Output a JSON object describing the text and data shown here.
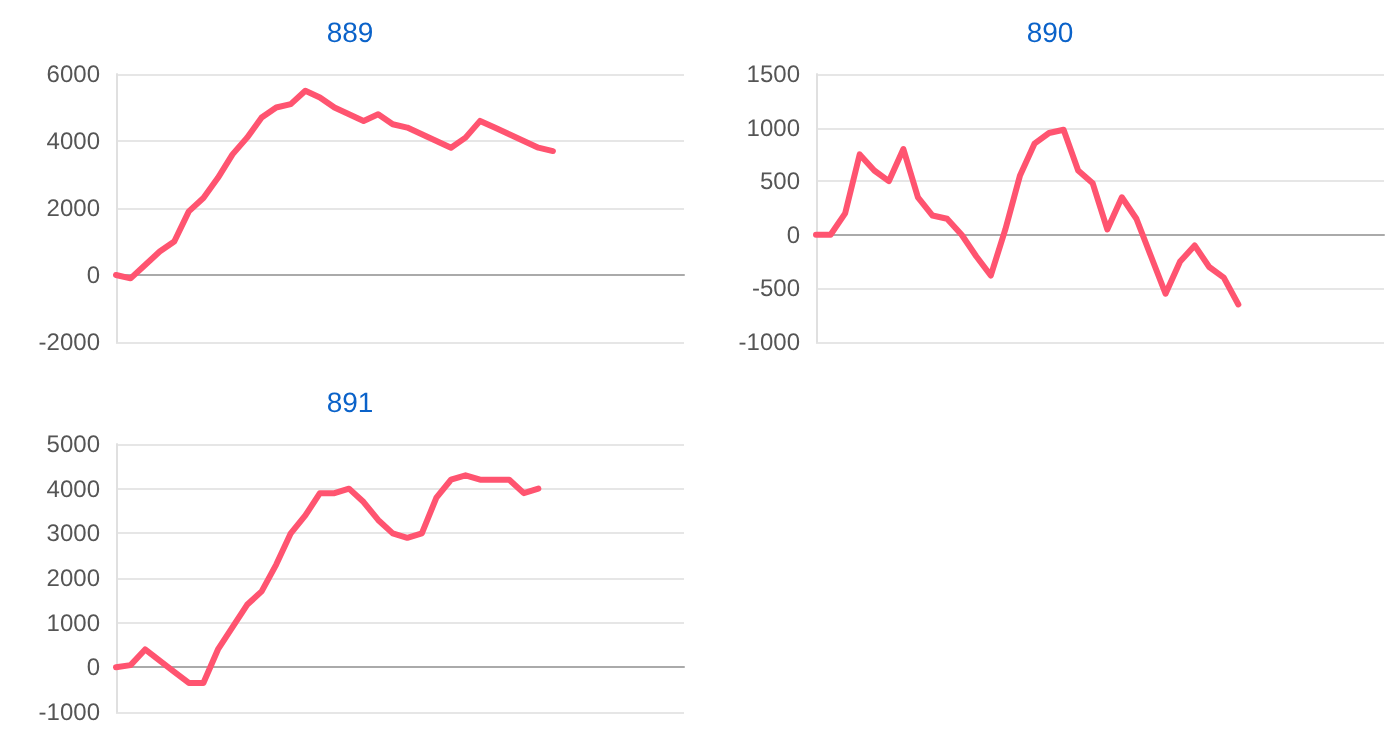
{
  "chart_data": [
    {
      "type": "line",
      "title": "889",
      "categories": [
        null,
        null,
        null,
        null,
        null,
        null,
        null,
        null,
        null,
        null,
        null,
        null,
        null,
        null,
        null,
        null,
        null,
        null,
        null,
        null,
        null,
        null,
        null,
        null,
        null,
        null,
        null,
        null,
        null,
        null,
        null,
        null,
        null,
        null,
        null,
        null,
        null,
        null,
        null,
        null
      ],
      "series": [
        {
          "color": "#ff5470",
          "values": [
            0,
            -100,
            300,
            700,
            1000,
            1900,
            2300,
            2900,
            3600,
            4100,
            4700,
            5000,
            5100,
            5500,
            5300,
            5000,
            4800,
            4600,
            4800,
            4500,
            4400,
            4200,
            4000,
            3800,
            4100,
            4600,
            4400,
            4200,
            4000,
            3800,
            3700,
            null,
            null,
            null,
            null,
            null,
            null,
            null,
            null,
            null
          ]
        }
      ],
      "ylim": [
        -2000,
        6000
      ],
      "yticks": [
        -2000,
        0,
        2000,
        4000,
        6000
      ],
      "grid": "y",
      "marker": "none",
      "line_style": "solid"
    },
    {
      "type": "line",
      "title": "890",
      "categories": [
        null,
        null,
        null,
        null,
        null,
        null,
        null,
        null,
        null,
        null,
        null,
        null,
        null,
        null,
        null,
        null,
        null,
        null,
        null,
        null,
        null,
        null,
        null,
        null,
        null,
        null,
        null,
        null,
        null,
        null,
        null,
        null,
        null,
        null,
        null,
        null,
        null,
        null,
        null,
        null
      ],
      "series": [
        {
          "color": "#ff5470",
          "values": [
            0,
            0,
            200,
            750,
            600,
            500,
            800,
            350,
            180,
            150,
            0,
            -200,
            -380,
            50,
            550,
            850,
            950,
            980,
            600,
            480,
            50,
            350,
            150,
            -200,
            -550,
            -250,
            -100,
            -300,
            -400,
            -650,
            null,
            null,
            null,
            null,
            null,
            null,
            null,
            null,
            null,
            null
          ]
        }
      ],
      "ylim": [
        -1000,
        1500
      ],
      "yticks": [
        -1000,
        -500,
        0,
        500,
        1000,
        1500
      ],
      "grid": "y",
      "marker": "none",
      "line_style": "solid"
    },
    {
      "type": "line",
      "title": "891",
      "categories": [
        null,
        null,
        null,
        null,
        null,
        null,
        null,
        null,
        null,
        null,
        null,
        null,
        null,
        null,
        null,
        null,
        null,
        null,
        null,
        null,
        null,
        null,
        null,
        null,
        null,
        null,
        null,
        null,
        null,
        null,
        null,
        null,
        null,
        null,
        null,
        null,
        null,
        null,
        null,
        null
      ],
      "series": [
        {
          "color": "#ff5470",
          "values": [
            0,
            50,
            400,
            150,
            -100,
            -350,
            -350,
            400,
            900,
            1400,
            1700,
            2300,
            3000,
            3400,
            3900,
            3900,
            4000,
            3700,
            3300,
            3000,
            2900,
            3000,
            3800,
            4200,
            4300,
            4200,
            4200,
            4200,
            3900,
            4000,
            null,
            null,
            null,
            null,
            null,
            null,
            null,
            null,
            null,
            null
          ]
        }
      ],
      "ylim": [
        -1000,
        5000
      ],
      "yticks": [
        -1000,
        0,
        1000,
        2000,
        3000,
        4000,
        5000
      ],
      "grid": "y",
      "marker": "none",
      "line_style": "solid"
    }
  ]
}
